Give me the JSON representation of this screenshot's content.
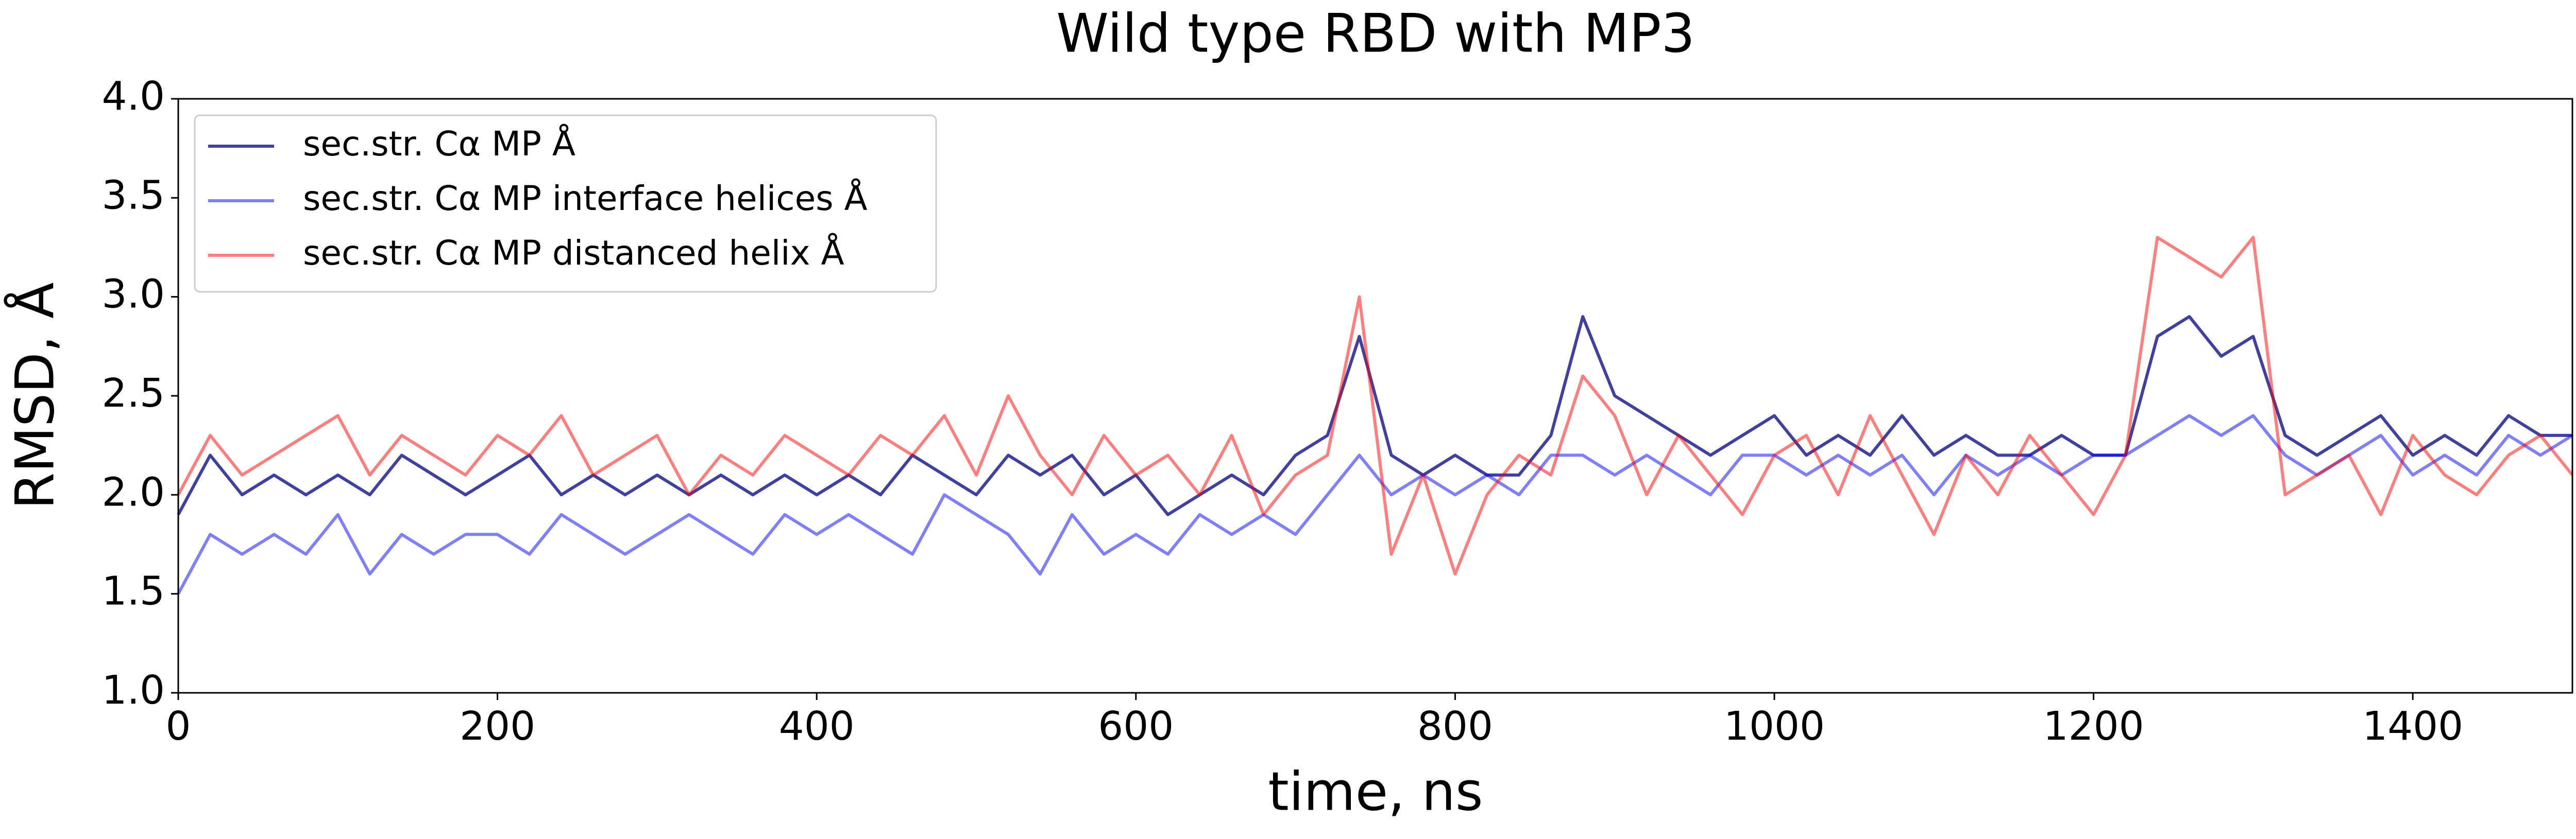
{
  "chart_data": {
    "type": "line",
    "title": "Wild type RBD with MP3",
    "xlabel": "time, ns",
    "ylabel": "RMSD, Å",
    "x": [
      0,
      20,
      40,
      60,
      80,
      100,
      120,
      140,
      160,
      180,
      200,
      220,
      240,
      260,
      280,
      300,
      320,
      340,
      360,
      380,
      400,
      420,
      440,
      460,
      480,
      500,
      520,
      540,
      560,
      580,
      600,
      620,
      640,
      660,
      680,
      700,
      720,
      740,
      760,
      780,
      800,
      820,
      840,
      860,
      880,
      900,
      920,
      940,
      960,
      980,
      1000,
      1020,
      1040,
      1060,
      1080,
      1100,
      1120,
      1140,
      1160,
      1180,
      1200,
      1220,
      1240,
      1260,
      1280,
      1300,
      1320,
      1340,
      1360,
      1380,
      1400,
      1420,
      1440,
      1460,
      1480,
      1500
    ],
    "series": [
      {
        "name": "sec.str. Cα MP Å",
        "color": "#000080",
        "alpha": 0.75,
        "values": [
          1.9,
          2.2,
          2.0,
          2.1,
          2.0,
          2.1,
          2.0,
          2.2,
          2.1,
          2.0,
          2.1,
          2.2,
          2.0,
          2.1,
          2.0,
          2.1,
          2.0,
          2.1,
          2.0,
          2.1,
          2.0,
          2.1,
          2.0,
          2.2,
          2.1,
          2.0,
          2.2,
          2.1,
          2.2,
          2.0,
          2.1,
          1.9,
          2.0,
          2.1,
          2.0,
          2.2,
          2.3,
          2.8,
          2.2,
          2.1,
          2.2,
          2.1,
          2.1,
          2.3,
          2.9,
          2.5,
          2.4,
          2.3,
          2.2,
          2.3,
          2.4,
          2.2,
          2.3,
          2.2,
          2.4,
          2.2,
          2.3,
          2.2,
          2.2,
          2.3,
          2.2,
          2.2,
          2.8,
          2.9,
          2.7,
          2.8,
          2.3,
          2.2,
          2.3,
          2.4,
          2.2,
          2.3,
          2.2,
          2.4,
          2.3,
          2.3
        ]
      },
      {
        "name": "sec.str. Cα MP interface helices Å",
        "color": "#0000ff",
        "alpha": 0.5,
        "values": [
          1.5,
          1.8,
          1.7,
          1.8,
          1.7,
          1.9,
          1.6,
          1.8,
          1.7,
          1.8,
          1.8,
          1.7,
          1.9,
          1.8,
          1.7,
          1.8,
          1.9,
          1.8,
          1.7,
          1.9,
          1.8,
          1.9,
          1.8,
          1.7,
          2.0,
          1.9,
          1.8,
          1.6,
          1.9,
          1.7,
          1.8,
          1.7,
          1.9,
          1.8,
          1.9,
          1.8,
          2.0,
          2.2,
          2.0,
          2.1,
          2.0,
          2.1,
          2.0,
          2.2,
          2.2,
          2.1,
          2.2,
          2.1,
          2.0,
          2.2,
          2.2,
          2.1,
          2.2,
          2.1,
          2.2,
          2.0,
          2.2,
          2.1,
          2.2,
          2.1,
          2.2,
          2.2,
          2.3,
          2.4,
          2.3,
          2.4,
          2.2,
          2.1,
          2.2,
          2.3,
          2.1,
          2.2,
          2.1,
          2.3,
          2.2,
          2.3
        ]
      },
      {
        "name": "sec.str. Cα MP distanced helix Å",
        "color": "#ff0000",
        "alpha": 0.5,
        "values": [
          2.0,
          2.3,
          2.1,
          2.2,
          2.3,
          2.4,
          2.1,
          2.3,
          2.2,
          2.1,
          2.3,
          2.2,
          2.4,
          2.1,
          2.2,
          2.3,
          2.0,
          2.2,
          2.1,
          2.3,
          2.2,
          2.1,
          2.3,
          2.2,
          2.4,
          2.1,
          2.5,
          2.2,
          2.0,
          2.3,
          2.1,
          2.2,
          2.0,
          2.3,
          1.9,
          2.1,
          2.2,
          3.0,
          1.7,
          2.1,
          1.6,
          2.0,
          2.2,
          2.1,
          2.6,
          2.4,
          2.0,
          2.3,
          2.1,
          1.9,
          2.2,
          2.3,
          2.0,
          2.4,
          2.1,
          1.8,
          2.2,
          2.0,
          2.3,
          2.1,
          1.9,
          2.2,
          3.3,
          3.2,
          3.1,
          3.3,
          2.0,
          2.1,
          2.2,
          1.9,
          2.3,
          2.1,
          2.0,
          2.2,
          2.3,
          2.1
        ]
      }
    ],
    "xlim": [
      0,
      1500
    ],
    "xticks": [
      0,
      200,
      400,
      600,
      800,
      1000,
      1200,
      1400
    ],
    "ylim": [
      1,
      4
    ],
    "yticks": [
      {
        "value": 1,
        "label": "1.0"
      },
      1.5,
      {
        "value": 2,
        "label": "2.0"
      },
      2.5,
      {
        "value": 3,
        "label": "3.0"
      },
      3.5,
      {
        "value": 4,
        "label": "4.0"
      }
    ],
    "grid": false,
    "legend": "upper left"
  }
}
